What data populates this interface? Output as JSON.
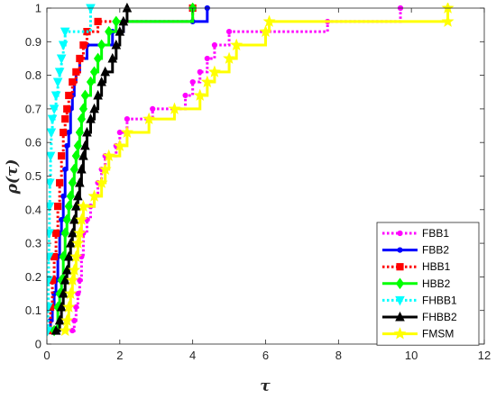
{
  "chart_data": {
    "type": "line",
    "title": "",
    "xlabel": "τ",
    "ylabel": "ρ(τ)",
    "xlim": [
      0,
      12
    ],
    "ylim": [
      0,
      1
    ],
    "xticks": [
      "0",
      "2",
      "4",
      "6",
      "8",
      "10",
      "12"
    ],
    "yticks": [
      "0",
      "0.1",
      "0.2",
      "0.3",
      "0.4",
      "0.5",
      "0.6",
      "0.7",
      "0.8",
      "0.9",
      "1"
    ],
    "grid": false,
    "legend_position": "bottom-right",
    "series": [
      {
        "name": "FBB1",
        "color": "#ff00ff",
        "dash": "dotted",
        "marker": "dot",
        "points": [
          [
            0.7,
            0.04
          ],
          [
            0.75,
            0.07
          ],
          [
            0.8,
            0.11
          ],
          [
            0.85,
            0.15
          ],
          [
            0.9,
            0.19
          ],
          [
            0.95,
            0.26
          ],
          [
            1.0,
            0.33
          ],
          [
            1.1,
            0.37
          ],
          [
            1.2,
            0.41
          ],
          [
            1.3,
            0.44
          ],
          [
            1.4,
            0.48
          ],
          [
            1.5,
            0.52
          ],
          [
            1.6,
            0.56
          ],
          [
            1.9,
            0.59
          ],
          [
            2.0,
            0.63
          ],
          [
            2.2,
            0.67
          ],
          [
            2.9,
            0.7
          ],
          [
            3.8,
            0.74
          ],
          [
            4.0,
            0.78
          ],
          [
            4.2,
            0.81
          ],
          [
            4.4,
            0.85
          ],
          [
            4.6,
            0.89
          ],
          [
            5.0,
            0.93
          ],
          [
            7.7,
            0.96
          ],
          [
            9.7,
            1.0
          ]
        ]
      },
      {
        "name": "FBB2",
        "color": "#0000ff",
        "dash": "solid",
        "marker": "dot",
        "points": [
          [
            0.05,
            0.04
          ],
          [
            0.1,
            0.07
          ],
          [
            0.15,
            0.11
          ],
          [
            0.2,
            0.15
          ],
          [
            0.25,
            0.19
          ],
          [
            0.3,
            0.26
          ],
          [
            0.35,
            0.33
          ],
          [
            0.4,
            0.37
          ],
          [
            0.45,
            0.44
          ],
          [
            0.5,
            0.52
          ],
          [
            0.55,
            0.59
          ],
          [
            0.6,
            0.63
          ],
          [
            0.65,
            0.7
          ],
          [
            0.7,
            0.74
          ],
          [
            0.75,
            0.78
          ],
          [
            0.8,
            0.81
          ],
          [
            0.9,
            0.85
          ],
          [
            1.1,
            0.89
          ],
          [
            1.8,
            0.93
          ],
          [
            2.1,
            0.96
          ],
          [
            4.0,
            0.96
          ],
          [
            4.4,
            1.0
          ]
        ]
      },
      {
        "name": "HBB1",
        "color": "#ff0000",
        "dash": "dotted",
        "marker": "square",
        "points": [
          [
            0.05,
            0.04
          ],
          [
            0.1,
            0.11
          ],
          [
            0.15,
            0.19
          ],
          [
            0.2,
            0.26
          ],
          [
            0.25,
            0.33
          ],
          [
            0.3,
            0.41
          ],
          [
            0.35,
            0.48
          ],
          [
            0.4,
            0.56
          ],
          [
            0.45,
            0.63
          ],
          [
            0.5,
            0.67
          ],
          [
            0.55,
            0.7
          ],
          [
            0.6,
            0.74
          ],
          [
            0.7,
            0.78
          ],
          [
            0.8,
            0.81
          ],
          [
            0.9,
            0.85
          ],
          [
            1.0,
            0.89
          ],
          [
            1.1,
            0.93
          ],
          [
            1.4,
            0.96
          ],
          [
            4.0,
            1.0
          ]
        ]
      },
      {
        "name": "HBB2",
        "color": "#00ff00",
        "dash": "solid",
        "marker": "diamond",
        "points": [
          [
            0.2,
            0.04
          ],
          [
            0.3,
            0.11
          ],
          [
            0.35,
            0.15
          ],
          [
            0.4,
            0.19
          ],
          [
            0.45,
            0.26
          ],
          [
            0.5,
            0.33
          ],
          [
            0.55,
            0.37
          ],
          [
            0.6,
            0.41
          ],
          [
            0.65,
            0.44
          ],
          [
            0.7,
            0.48
          ],
          [
            0.75,
            0.52
          ],
          [
            0.8,
            0.56
          ],
          [
            0.85,
            0.59
          ],
          [
            0.9,
            0.63
          ],
          [
            0.95,
            0.67
          ],
          [
            1.0,
            0.7
          ],
          [
            1.05,
            0.74
          ],
          [
            1.2,
            0.78
          ],
          [
            1.3,
            0.81
          ],
          [
            1.4,
            0.85
          ],
          [
            1.5,
            0.89
          ],
          [
            1.7,
            0.93
          ],
          [
            1.9,
            0.96
          ],
          [
            4.0,
            1.0
          ]
        ]
      },
      {
        "name": "FHBB1",
        "color": "#00ffff",
        "dash": "dotted",
        "marker": "triangle-down",
        "points": [
          [
            0.02,
            0.04
          ],
          [
            0.03,
            0.11
          ],
          [
            0.04,
            0.19
          ],
          [
            0.05,
            0.26
          ],
          [
            0.06,
            0.33
          ],
          [
            0.07,
            0.41
          ],
          [
            0.08,
            0.48
          ],
          [
            0.1,
            0.56
          ],
          [
            0.12,
            0.63
          ],
          [
            0.15,
            0.67
          ],
          [
            0.2,
            0.7
          ],
          [
            0.25,
            0.74
          ],
          [
            0.3,
            0.78
          ],
          [
            0.35,
            0.81
          ],
          [
            0.4,
            0.85
          ],
          [
            0.45,
            0.89
          ],
          [
            0.5,
            0.93
          ],
          [
            1.2,
            1.0
          ]
        ]
      },
      {
        "name": "FHBB2",
        "color": "#000000",
        "dash": "solid",
        "marker": "triangle-up",
        "points": [
          [
            0.25,
            0.04
          ],
          [
            0.35,
            0.07
          ],
          [
            0.4,
            0.11
          ],
          [
            0.45,
            0.15
          ],
          [
            0.5,
            0.19
          ],
          [
            0.55,
            0.22
          ],
          [
            0.6,
            0.26
          ],
          [
            0.65,
            0.3
          ],
          [
            0.7,
            0.33
          ],
          [
            0.75,
            0.37
          ],
          [
            0.8,
            0.41
          ],
          [
            0.85,
            0.44
          ],
          [
            0.9,
            0.48
          ],
          [
            0.95,
            0.52
          ],
          [
            1.0,
            0.56
          ],
          [
            1.05,
            0.59
          ],
          [
            1.1,
            0.63
          ],
          [
            1.2,
            0.67
          ],
          [
            1.3,
            0.7
          ],
          [
            1.4,
            0.74
          ],
          [
            1.5,
            0.78
          ],
          [
            1.6,
            0.81
          ],
          [
            1.8,
            0.85
          ],
          [
            1.9,
            0.89
          ],
          [
            2.0,
            0.93
          ],
          [
            2.1,
            0.96
          ],
          [
            2.2,
            1.0
          ]
        ]
      },
      {
        "name": "FMSM",
        "color": "#ffff00",
        "dash": "solid",
        "marker": "star",
        "points": [
          [
            0.5,
            0.04
          ],
          [
            0.55,
            0.07
          ],
          [
            0.6,
            0.11
          ],
          [
            0.65,
            0.15
          ],
          [
            0.7,
            0.19
          ],
          [
            0.75,
            0.22
          ],
          [
            0.8,
            0.26
          ],
          [
            0.85,
            0.3
          ],
          [
            0.9,
            0.33
          ],
          [
            0.95,
            0.37
          ],
          [
            1.0,
            0.41
          ],
          [
            1.3,
            0.44
          ],
          [
            1.5,
            0.48
          ],
          [
            1.6,
            0.52
          ],
          [
            1.7,
            0.56
          ],
          [
            2.0,
            0.59
          ],
          [
            2.2,
            0.63
          ],
          [
            2.8,
            0.67
          ],
          [
            3.5,
            0.7
          ],
          [
            4.2,
            0.74
          ],
          [
            4.4,
            0.78
          ],
          [
            4.6,
            0.81
          ],
          [
            5.0,
            0.85
          ],
          [
            5.2,
            0.89
          ],
          [
            6.0,
            0.93
          ],
          [
            6.1,
            0.96
          ],
          [
            11.0,
            0.96
          ],
          [
            11.0,
            1.0
          ]
        ]
      }
    ]
  }
}
